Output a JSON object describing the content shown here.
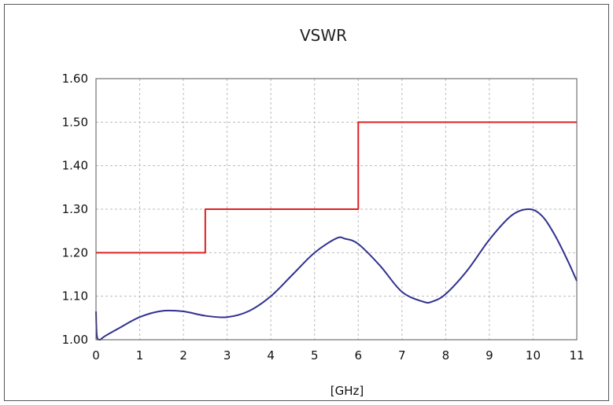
{
  "chart_data": {
    "type": "line",
    "title": "VSWR",
    "xlabel": "[GHz]",
    "ylabel": "",
    "xlim": [
      0,
      11
    ],
    "ylim": [
      1.0,
      1.6
    ],
    "x_ticks": [
      "0",
      "1",
      "2",
      "3",
      "4",
      "5",
      "6",
      "7",
      "8",
      "9",
      "10",
      "11"
    ],
    "y_ticks": [
      "1.00",
      "1.10",
      "1.20",
      "1.30",
      "1.40",
      "1.50",
      "1.60"
    ],
    "grid": true,
    "colors": {
      "spec": "#e02020",
      "measured": "#303090",
      "grid": "#bbbbbb"
    },
    "series": [
      {
        "color": "#e02020",
        "style": "step",
        "x": [
          0,
          2.5,
          2.5,
          6.0,
          6.0,
          11
        ],
        "y": [
          1.2,
          1.2,
          1.3,
          1.3,
          1.5,
          1.5
        ]
      },
      {
        "color": "#303090",
        "style": "smooth",
        "x": [
          0,
          0.02,
          0.08,
          0.2,
          0.5,
          1.0,
          1.5,
          2.0,
          2.5,
          3.0,
          3.5,
          4.0,
          4.5,
          5.0,
          5.5,
          5.7,
          6.0,
          6.5,
          7.0,
          7.5,
          7.7,
          8.0,
          8.5,
          9.0,
          9.5,
          9.9,
          10.2,
          10.5,
          10.8,
          11.0
        ],
        "y": [
          1.065,
          1.01,
          1.0,
          1.008,
          1.025,
          1.052,
          1.066,
          1.065,
          1.055,
          1.052,
          1.066,
          1.1,
          1.15,
          1.2,
          1.233,
          1.232,
          1.22,
          1.17,
          1.11,
          1.087,
          1.088,
          1.105,
          1.16,
          1.23,
          1.285,
          1.3,
          1.285,
          1.24,
          1.18,
          1.135
        ]
      }
    ]
  }
}
